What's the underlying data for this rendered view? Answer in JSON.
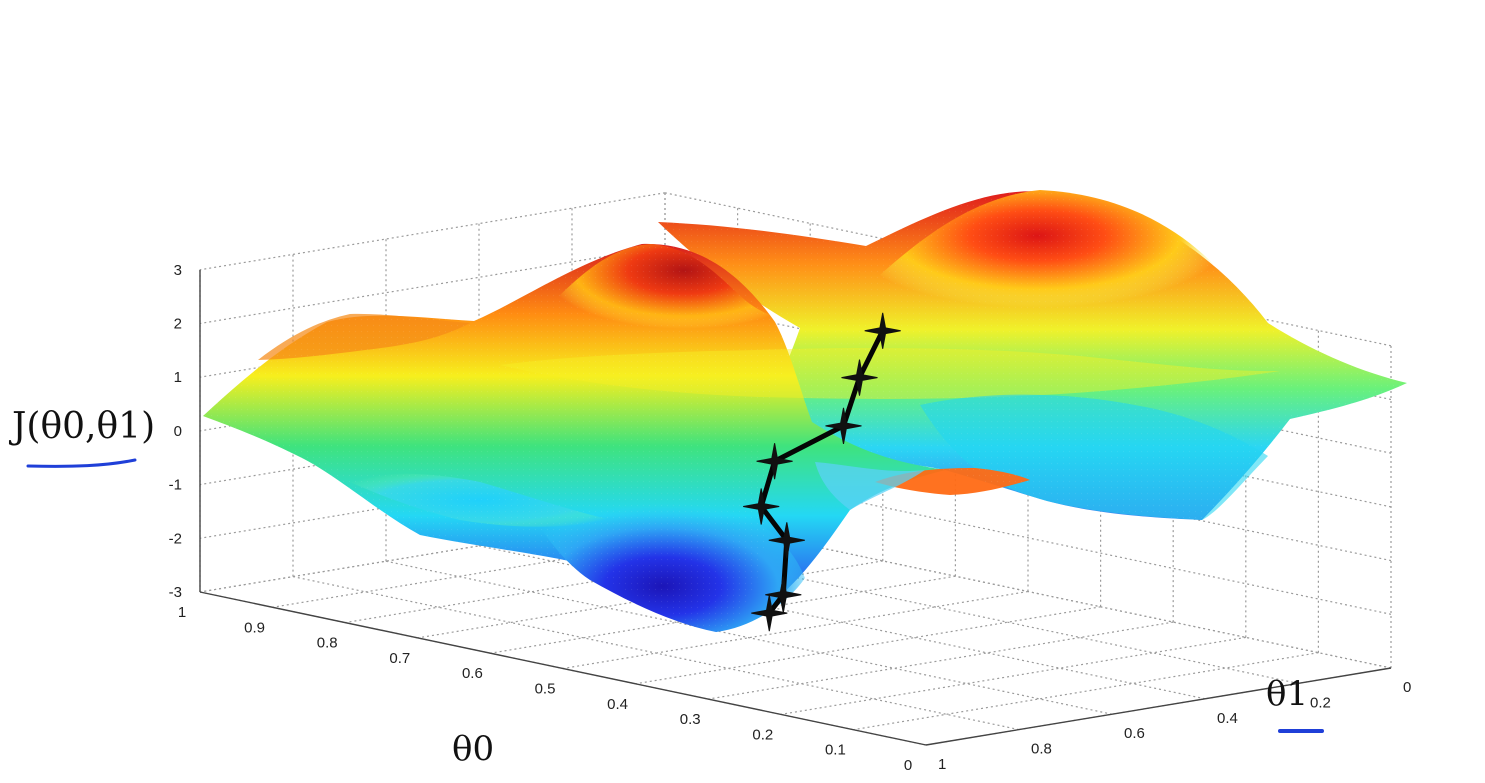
{
  "chart_data": {
    "type": "surface",
    "zlabel": "J(θ0,θ1)",
    "xlabel": "θ0",
    "ylabel": "θ1",
    "xlim": [
      0,
      1
    ],
    "ylim": [
      0,
      1
    ],
    "zlim": [
      -3,
      3
    ],
    "grid": true,
    "colormap": "jet",
    "x_ticks": [
      "1",
      "0.9",
      "0.8",
      "0.7",
      "0.6",
      "0.5",
      "0.4",
      "0.3",
      "0.2",
      "0.1",
      "0"
    ],
    "y_ticks": [
      "0",
      "0.2",
      "0.4",
      "0.6",
      "0.8",
      "1"
    ],
    "z_ticks": [
      "3",
      "2",
      "1",
      "0",
      "-1",
      "-2",
      "-3"
    ],
    "descent_path": [
      {
        "theta0": 0.54,
        "theta1": 0.25,
        "J": 2.1
      },
      {
        "theta0": 0.54,
        "theta1": 0.3,
        "J": 1.3
      },
      {
        "theta0": 0.53,
        "theta1": 0.35,
        "J": 0.5
      },
      {
        "theta0": 0.58,
        "theta1": 0.42,
        "J": -0.2
      },
      {
        "theta0": 0.56,
        "theta1": 0.48,
        "J": -0.9
      },
      {
        "theta0": 0.48,
        "theta1": 0.55,
        "J": -1.2
      },
      {
        "theta0": 0.44,
        "theta1": 0.62,
        "J": -2.0
      },
      {
        "theta0": 0.44,
        "theta1": 0.65,
        "J": -2.3
      }
    ],
    "annotation_color": "#1f3fd8"
  }
}
